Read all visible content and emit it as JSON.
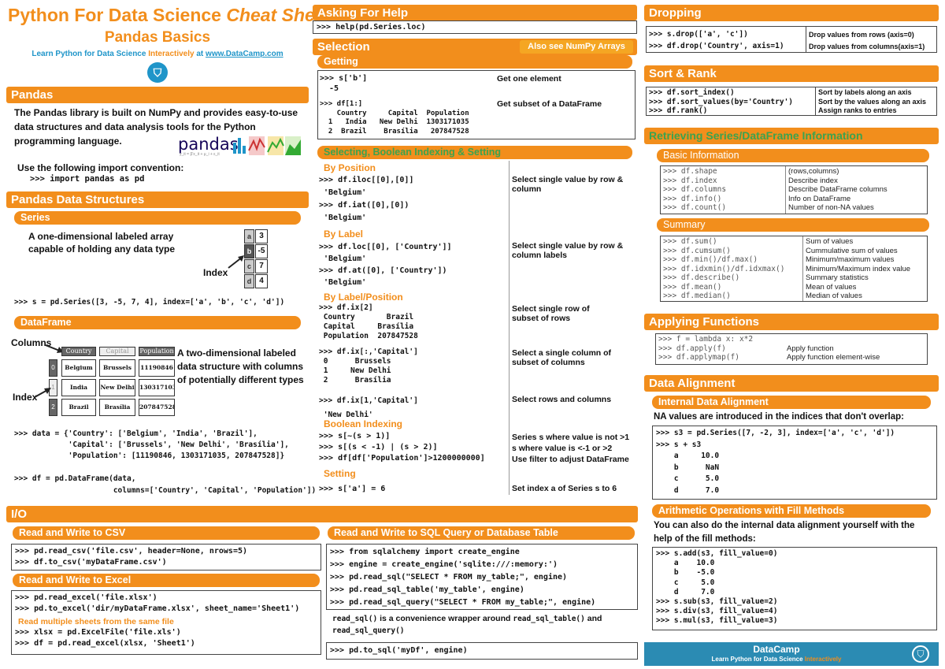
{
  "header": {
    "title_a": "Python For Data Science ",
    "title_b": "Cheat Sheet",
    "subtitle": "Pandas Basics",
    "learn_a": "Learn Python for Data Science ",
    "learn_b": "Interactively",
    "learn_c": " at ",
    "learn_d": "www.DataCamp.com"
  },
  "pandas": {
    "title": "Pandas",
    "desc_a": "The ",
    "desc_b": "Pandas",
    "desc_c": " library is built on NumPy and provides easy-to-use",
    "desc_d": "data structures",
    "desc_e": " and ",
    "desc_f": "data analysis",
    "desc_g": " tools for the Python",
    "desc_h": "programming language.",
    "logo": "pandas",
    "logo_small": "y_it = β'x_it + μ_i + ε_it",
    "import_note": "Use the following import convention:",
    "import_code": ">>> import pandas as pd"
  },
  "structures": {
    "title": "Pandas Data Structures",
    "series_title": "Series",
    "series_desc_1": "A one-dimensional labeled array",
    "series_desc_2": "capable of holding any data type",
    "index_label": "Index",
    "series_index": [
      "a",
      "b",
      "c",
      "d"
    ],
    "series_values": [
      "3",
      "-5",
      "7",
      "4"
    ],
    "series_code": ">>> s = pd.Series([3, -5, 7, 4], index=['a', 'b', 'c', 'd'])",
    "df_title": "DataFrame",
    "columns_label": "Columns",
    "df_desc_1": "A two-dimensional labeled",
    "df_desc_2": "data structure with columns",
    "df_desc_3": "of potentially different types",
    "df_headers": [
      "Country",
      "Capital",
      "Population"
    ],
    "df_index": [
      "0",
      "1",
      "2"
    ],
    "df_rows": [
      [
        "Belgium",
        "Brussels",
        "11190846"
      ],
      [
        "India",
        "New Delhi",
        "1303171035"
      ],
      [
        "Brazil",
        "Brasília",
        "207847528"
      ]
    ],
    "data_code": ">>> data = {'Country': ['Belgium', 'India', 'Brazil'],\n            'Capital': ['Brussels', 'New Delhi', 'Brasília'],\n            'Population': [11190846, 1303171035, 207847528]}",
    "df_code": ">>> df = pd.DataFrame(data,\n                      columns=['Country', 'Capital', 'Population'])"
  },
  "help": {
    "title": "Asking For Help",
    "code": ">>> help(pd.Series.loc)"
  },
  "selection": {
    "title": "Selection",
    "also": "Also see NumPy Arrays",
    "getting_title": "Getting",
    "get1_code": ">>> s['b']\n  -5",
    "get1_desc": "Get one element",
    "get2_code": ">>> df[1:]\n    Country     Capital  Population\n  1   India   New Delhi  1303171035\n  2  Brazil    Brasília   207847528",
    "get2_desc": "Get subset of a DataFrame",
    "sbs_title": "Selecting, Boolean Indexing & Setting",
    "by_position": "By Position",
    "pos1_code": ">>> df.iloc[[0],[0]]\n 'Belgium'\n>>> df.iat([0],[0])\n 'Belgium'",
    "pos_desc": "Select single value by row & column",
    "by_label": "By Label",
    "lab_code": ">>> df.loc[[0], ['Country']]\n 'Belgium'\n>>> df.at([0], ['Country'])\n 'Belgium'",
    "lab_desc": "Select single value by row & column labels",
    "by_labpos": "By Label/Position",
    "lp1_code": ">>> df.ix[2]\n Country       Brazil\n Capital     Brasília\n Population  207847528",
    "lp1_desc": "Select single row of subset of rows",
    "lp2_code": ">>> df.ix[:,'Capital']\n 0      Brussels\n 1     New Delhi\n 2      Brasília",
    "lp2_desc": "Select a single column of subset of columns",
    "lp3_code": ">>> df.ix[1,'Capital']\n 'New Delhi'",
    "lp3_desc": "Select rows and columns",
    "bool_title": "Boolean Indexing",
    "bool_code": ">>> s[~(s > 1)]\n>>> s[(s < -1) | (s > 2)]\n>>> df[df['Population']>1200000000]",
    "bool_desc1": "Series s where value is not >1",
    "bool_desc2": "s where value is <-1 or >2",
    "bool_desc3": "Use filter to adjust DataFrame",
    "setting_title": "Setting",
    "set_code": ">>> s['a'] = 6",
    "set_desc": "Set index a of Series s to 6"
  },
  "dropping": {
    "title": "Dropping",
    "code1": ">>> s.drop(['a', 'c'])",
    "desc1": "Drop values from rows (axis=0)",
    "code2": ">>> df.drop('Country', axis=1)",
    "desc2": "Drop values from columns(axis=1)"
  },
  "sort": {
    "title": "Sort & Rank",
    "code": ">>> df.sort_index()\n>>> df.sort_values(by='Country')\n>>> df.rank()",
    "desc": "Sort by labels along an axis\nSort by the values along an axis\nAssign ranks to entries"
  },
  "retrieving": {
    "title": "Retrieving Series/DataFrame Information",
    "basic_title": "Basic Information",
    "basic_code": ">>> df.shape\n>>> df.index\n>>> df.columns\n>>> df.info()\n>>> df.count()",
    "basic_desc": "(rows,columns)\nDescribe index\nDescribe DataFrame columns\nInfo on DataFrame\nNumber of non-NA values",
    "summary_title": "Summary",
    "summary_code": ">>> df.sum()\n>>> df.cumsum()\n>>> df.min()/df.max()\n>>> df.idxmin()/df.idxmax()\n>>> df.describe()\n>>> df.mean()\n>>> df.median()",
    "summary_desc": "Sum of values\nCummulative sum of values\nMinimum/maximum values\nMinimum/Maximum index value\nSummary statistics\nMean of values\nMedian of values"
  },
  "applying": {
    "title": "Applying Functions",
    "code": ">>> f = lambda x: x*2\n>>> df.apply(f)\n>>> df.applymap(f)",
    "desc": "\nApply function\nApply function element-wise"
  },
  "alignment": {
    "title": "Data Alignment",
    "internal_title": "Internal Data Alignment",
    "na_note": "NA values are introduced in the indices that don't overlap:",
    "code": ">>> s3 = pd.Series([7, -2, 3], index=['a', 'c', 'd'])\n>>> s + s3\n    a     10.0\n    b      NaN\n    c      5.0\n    d      7.0",
    "arith_title": "Arithmetic Operations with Fill Methods",
    "arith_note": "You can also do the internal data alignment yourself with the help of the fill methods:",
    "arith_code": ">>> s.add(s3, fill_value=0)\n    a    10.0\n    b    -5.0\n    c     5.0\n    d     7.0\n>>> s.sub(s3, fill_value=2)\n>>> s.div(s3, fill_value=4)\n>>> s.mul(s3, fill_value=3)"
  },
  "io": {
    "title": "I/O",
    "csv_title": "Read and Write to CSV",
    "csv_code": ">>> pd.read_csv('file.csv', header=None, nrows=5)\n>>> df.to_csv('myDataFrame.csv')",
    "excel_title": "Read and Write to Excel",
    "excel_code1": ">>> pd.read_excel('file.xlsx')\n>>> pd.to_excel('dir/myDataFrame.xlsx', sheet_name='Sheet1')",
    "excel_note": "Read multiple sheets from the same file",
    "excel_code2": ">>> xlsx = pd.ExcelFile('file.xls')\n>>> df = pd.read_excel(xlsx, 'Sheet1')",
    "sql_title": "Read and Write to SQL Query or Database Table",
    "sql_code": ">>> from sqlalchemy import create_engine\n>>> engine = create_engine('sqlite:///:memory:')\n>>> pd.read_sql(\"SELECT * FROM my_table;\", engine)\n>>> pd.read_sql_table('my_table', engine)\n>>> pd.read_sql_query(\"SELECT * FROM my_table;\", engine)",
    "sql_note_1": "read_sql()",
    "sql_note_2": " is a convenience wrapper around ",
    "sql_note_3": "read_sql_table()",
    "sql_note_4": " and",
    "sql_note_5": "read_sql_query()",
    "sql_code2": ">>> pd.to_sql('myDf', engine)"
  },
  "footer": {
    "brand": "DataCamp",
    "tag_a": "Learn Python for Data Science ",
    "tag_b": "Interactively"
  }
}
